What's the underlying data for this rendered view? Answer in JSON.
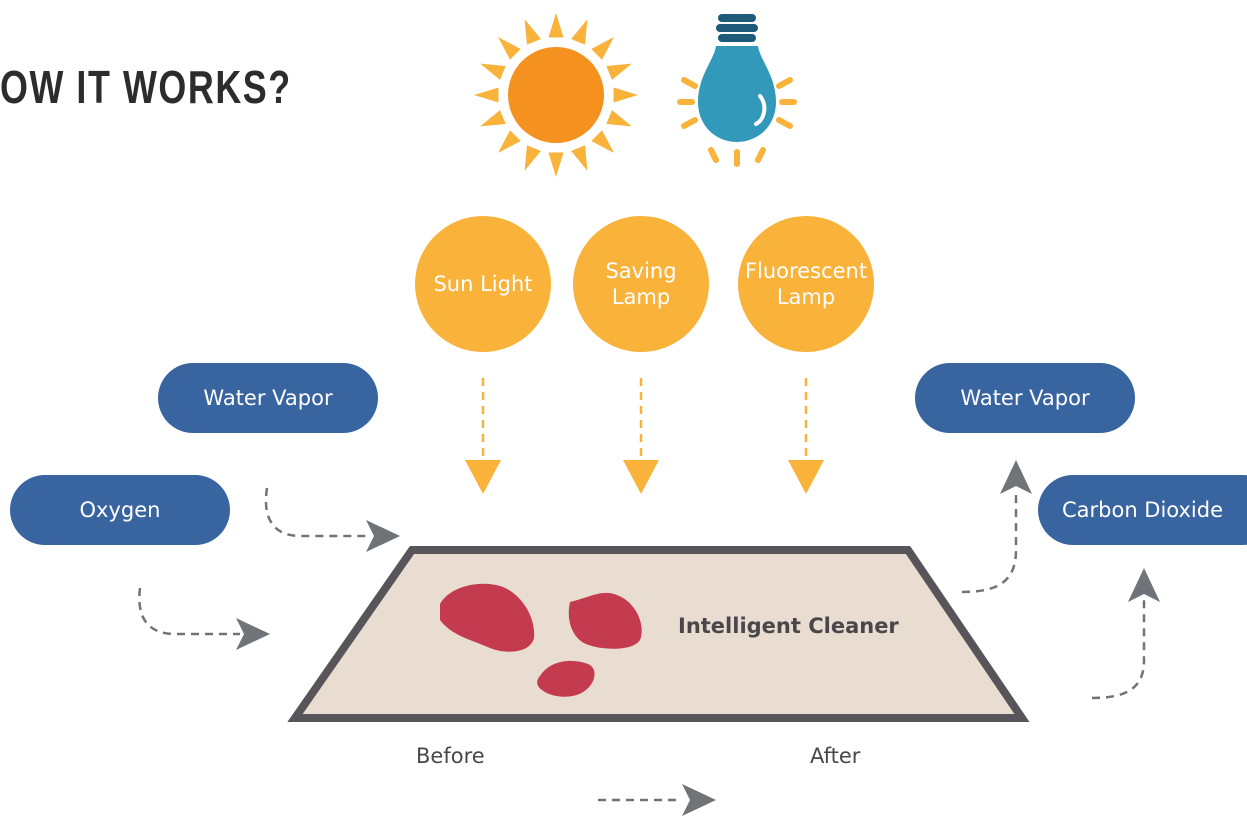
{
  "header": {
    "title": "OW IT WORKS?"
  },
  "light_sources": [
    {
      "lines": [
        "Sun Light"
      ]
    },
    {
      "lines": [
        "Saving",
        "Lamp"
      ]
    },
    {
      "lines": [
        "Fluorescent",
        "Lamp"
      ]
    }
  ],
  "inputs": [
    {
      "label": "Water Vapor"
    },
    {
      "label": "Oxygen"
    }
  ],
  "outputs": [
    {
      "label": "Water Vapor"
    },
    {
      "label": "Carbon Dioxide"
    }
  ],
  "cleaner": {
    "label": "Intelligent Cleaner"
  },
  "stages": {
    "before": "Before",
    "after": "After"
  }
}
